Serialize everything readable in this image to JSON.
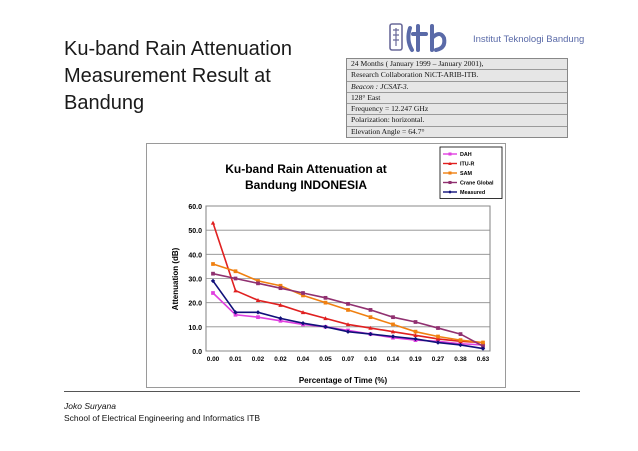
{
  "slide": {
    "title": "Ku-band Rain Attenuation Measurement Result at Bandung",
    "logo_text": "Institut Teknologi Bandung",
    "footer_name": "Joko Suryana",
    "footer_org": "School of Electrical Engineering and Informatics ITB"
  },
  "info_box": {
    "lines": [
      "24 Months ( January 1999 – January 2001),",
      "Research Collaboration NiCT-ARIB-ITB.",
      "Beacon : JCSAT-3.",
      "128° East",
      "Frequency = 12.247 GHz",
      "Polarization: horizontal.",
      "Elevation Angle = 64.7°"
    ]
  },
  "chart_data": {
    "type": "line",
    "title": "Ku-band Rain Attenuation at Bandung INDONESIA",
    "title_lines": [
      "Ku-band Rain Attenuation at",
      "Bandung INDONESIA"
    ],
    "xlabel": "Percentage of Time (%)",
    "ylabel": "Attenuation (dB)",
    "categories": [
      "0.00",
      "0.01",
      "0.02",
      "0.02",
      "0.04",
      "0.05",
      "0.07",
      "0.10",
      "0.14",
      "0.19",
      "0.27",
      "0.38",
      "0.63"
    ],
    "yticks": [
      "0.0",
      "10.0",
      "20.0",
      "30.0",
      "40.0",
      "50.0",
      "60.0"
    ],
    "ylim": [
      0,
      60
    ],
    "grid": true,
    "legend_position": "top-right",
    "series": [
      {
        "name": "DAH",
        "color": "#e040e0",
        "marker": "square",
        "values": [
          24,
          15,
          14,
          12.5,
          11,
          10,
          8.5,
          7,
          5.5,
          4.5,
          4,
          3,
          2.5
        ]
      },
      {
        "name": "ITU-R",
        "color": "#e02020",
        "marker": "triangle",
        "values": [
          53,
          25,
          21,
          19,
          16,
          13.5,
          11,
          9.5,
          8,
          6.5,
          5,
          4,
          3.5
        ]
      },
      {
        "name": "SAM",
        "color": "#f08010",
        "marker": "square",
        "values": [
          36,
          33,
          29,
          27,
          23,
          20,
          17,
          14,
          11,
          8,
          6,
          4.5,
          3.5
        ]
      },
      {
        "name": "Crane Global",
        "color": "#903070",
        "marker": "square",
        "values": [
          32,
          30,
          28,
          26,
          24,
          22,
          19.5,
          17,
          14,
          12,
          9.5,
          7,
          2
        ]
      },
      {
        "name": "Measured",
        "color": "#10107a",
        "marker": "diamond",
        "values": [
          29,
          16,
          16,
          13.5,
          11.5,
          10,
          8,
          7,
          6,
          5,
          3.5,
          2.5,
          1
        ]
      }
    ]
  }
}
